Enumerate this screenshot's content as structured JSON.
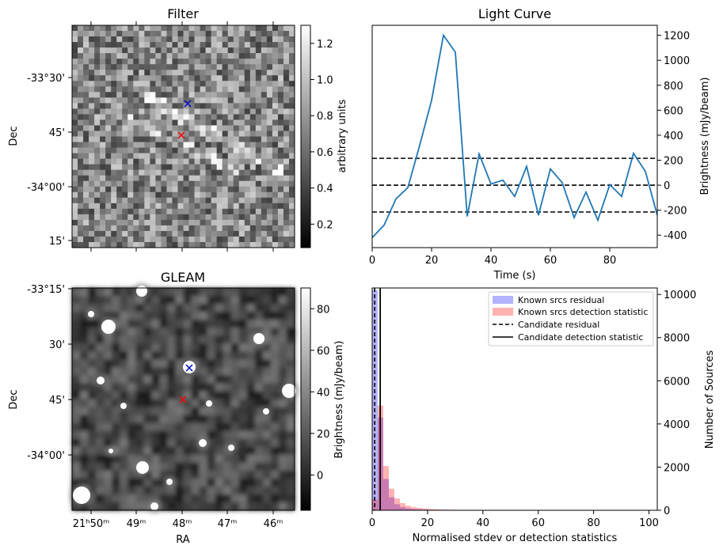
{
  "chart_data": [
    {
      "type": "heatmap",
      "title": "Filter",
      "xlabel": "",
      "ylabel": "Dec",
      "y_ticks": [
        "-33°30'",
        "45'",
        "-34°00'",
        "15'"
      ],
      "colorbar": {
        "label": "arbitrary units",
        "range": [
          0.07,
          1.3
        ],
        "ticks": [
          "0.2",
          "0.4",
          "0.6",
          "0.8",
          "1.0",
          "1.2"
        ]
      },
      "markers": [
        {
          "symbol": "x",
          "color": "#0000cc"
        },
        {
          "symbol": "x",
          "color": "#ff0000"
        }
      ]
    },
    {
      "type": "line",
      "title": "Light Curve",
      "xlabel": "Time (s)",
      "ylabel": "Brightness (mJy/beam)",
      "xlim": [
        0,
        96
      ],
      "ylim": [
        -500,
        1280
      ],
      "x_ticks": [
        "0",
        "20",
        "40",
        "60",
        "80"
      ],
      "y_ticks": [
        "-400",
        "-200",
        "0",
        "200",
        "400",
        "600",
        "800",
        "1000",
        "1200"
      ],
      "x": [
        0,
        4,
        8,
        12,
        16,
        20,
        24,
        28,
        32,
        36,
        40,
        44,
        48,
        52,
        56,
        60,
        64,
        68,
        72,
        76,
        80,
        84,
        88,
        92,
        96
      ],
      "values": [
        -420,
        -320,
        -110,
        -20,
        320,
        680,
        1200,
        1065,
        -250,
        250,
        10,
        40,
        -90,
        150,
        -240,
        130,
        20,
        -260,
        -55,
        -280,
        5,
        -90,
        255,
        110,
        -240
      ],
      "hlines": [
        215,
        0,
        -215
      ],
      "color": "#1f77b4"
    },
    {
      "type": "heatmap",
      "title": "GLEAM",
      "xlabel": "RA",
      "ylabel": "Dec",
      "x_ticks": [
        "21ʰ50ᵐ",
        "49ᵐ",
        "48ᵐ",
        "47ᵐ",
        "46ᵐ"
      ],
      "y_ticks": [
        "-33°15'",
        "30'",
        "45'",
        "-34°00'"
      ],
      "colorbar": {
        "label": "Brightness (mJy/beam)",
        "range": [
          -17,
          90
        ],
        "ticks": [
          "0",
          "20",
          "40",
          "60",
          "80"
        ]
      },
      "markers": [
        {
          "symbol": "x",
          "color": "#0000cc"
        },
        {
          "symbol": "x",
          "color": "#ff0000"
        }
      ]
    },
    {
      "type": "bar",
      "title": "",
      "xlabel": "Normalised stdev or detection statistics",
      "ylabel": "Number of Sources",
      "xlim": [
        0,
        103
      ],
      "ylim": [
        0,
        10300
      ],
      "x_ticks": [
        "0",
        "20",
        "40",
        "60",
        "80",
        "100"
      ],
      "y_ticks": [
        "0",
        "2000",
        "4000",
        "6000",
        "8000",
        "10000"
      ],
      "bin_width": 2,
      "legend": [
        "Known srcs residual",
        "Known srcs detection statistic",
        "Candidate residual",
        "Candidate detection statistic"
      ],
      "legend_position": "top-right",
      "series": [
        {
          "name": "Known srcs residual",
          "color": "#0000ff",
          "values": [
            10200,
            4300,
            1450,
            600,
            280,
            150,
            90,
            60,
            40,
            25,
            18,
            12,
            8,
            6,
            5,
            4,
            3,
            2,
            2,
            1
          ]
        },
        {
          "name": "Known srcs detection statistic",
          "color": "#ff0000",
          "values": [
            500,
            4850,
            2050,
            1000,
            550,
            330,
            210,
            150,
            110,
            85,
            65,
            50,
            40,
            33,
            27,
            22,
            18,
            15,
            12,
            10,
            9,
            8,
            7,
            6,
            5,
            5,
            4,
            4,
            3,
            3,
            3,
            2,
            2,
            2,
            2,
            2,
            1,
            1,
            1,
            1,
            1,
            1,
            1,
            1,
            1,
            1,
            1,
            1,
            1,
            1
          ]
        }
      ],
      "candidate_residual": 0.9,
      "candidate_detection_statistic": 2.9
    }
  ]
}
